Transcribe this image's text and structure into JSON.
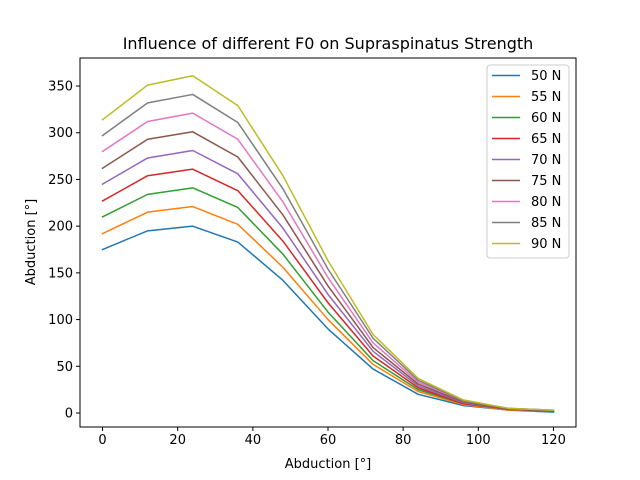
{
  "chart_data": {
    "type": "line",
    "title": "Influence of different F0 on Supraspinatus Strength",
    "xlabel": "Abduction [°]",
    "ylabel": "Abduction [°]",
    "xlim": [
      -6,
      126
    ],
    "ylim": [
      -15,
      380
    ],
    "xticks": [
      0,
      20,
      40,
      60,
      80,
      100,
      120
    ],
    "yticks": [
      0,
      50,
      100,
      150,
      200,
      250,
      300,
      350
    ],
    "grid": false,
    "legend_position": "top-right",
    "x": [
      0,
      12,
      24,
      36,
      48,
      60,
      72,
      84,
      96,
      108,
      120
    ],
    "series": [
      {
        "name": "50 N",
        "color": "#1f77b4",
        "values": [
          175,
          195,
          200,
          183,
          142,
          90,
          47,
          20,
          8,
          3,
          1
        ]
      },
      {
        "name": "55 N",
        "color": "#ff7f0e",
        "values": [
          192,
          215,
          221,
          202,
          156,
          100,
          52,
          23,
          9,
          3,
          2
        ]
      },
      {
        "name": "60 N",
        "color": "#2ca02c",
        "values": [
          210,
          234,
          241,
          220,
          170,
          108,
          56,
          25,
          10,
          4,
          2
        ]
      },
      {
        "name": "65 N",
        "color": "#d62728",
        "values": [
          227,
          254,
          261,
          238,
          184,
          118,
          61,
          27,
          10,
          4,
          2
        ]
      },
      {
        "name": "70 N",
        "color": "#9467bd",
        "values": [
          245,
          273,
          281,
          256,
          198,
          127,
          66,
          29,
          11,
          4,
          2
        ]
      },
      {
        "name": "75 N",
        "color": "#8c564b",
        "values": [
          262,
          293,
          301,
          274,
          212,
          136,
          70,
          31,
          12,
          4,
          2
        ]
      },
      {
        "name": "80 N",
        "color": "#e377c2",
        "values": [
          280,
          312,
          321,
          293,
          226,
          145,
          75,
          33,
          13,
          5,
          3
        ]
      },
      {
        "name": "85 N",
        "color": "#7f7f7f",
        "values": [
          297,
          332,
          341,
          311,
          240,
          154,
          80,
          35,
          13,
          5,
          3
        ]
      },
      {
        "name": "90 N",
        "color": "#bcbd22",
        "values": [
          314,
          351,
          361,
          329,
          254,
          163,
          84,
          37,
          14,
          5,
          3
        ]
      }
    ]
  }
}
